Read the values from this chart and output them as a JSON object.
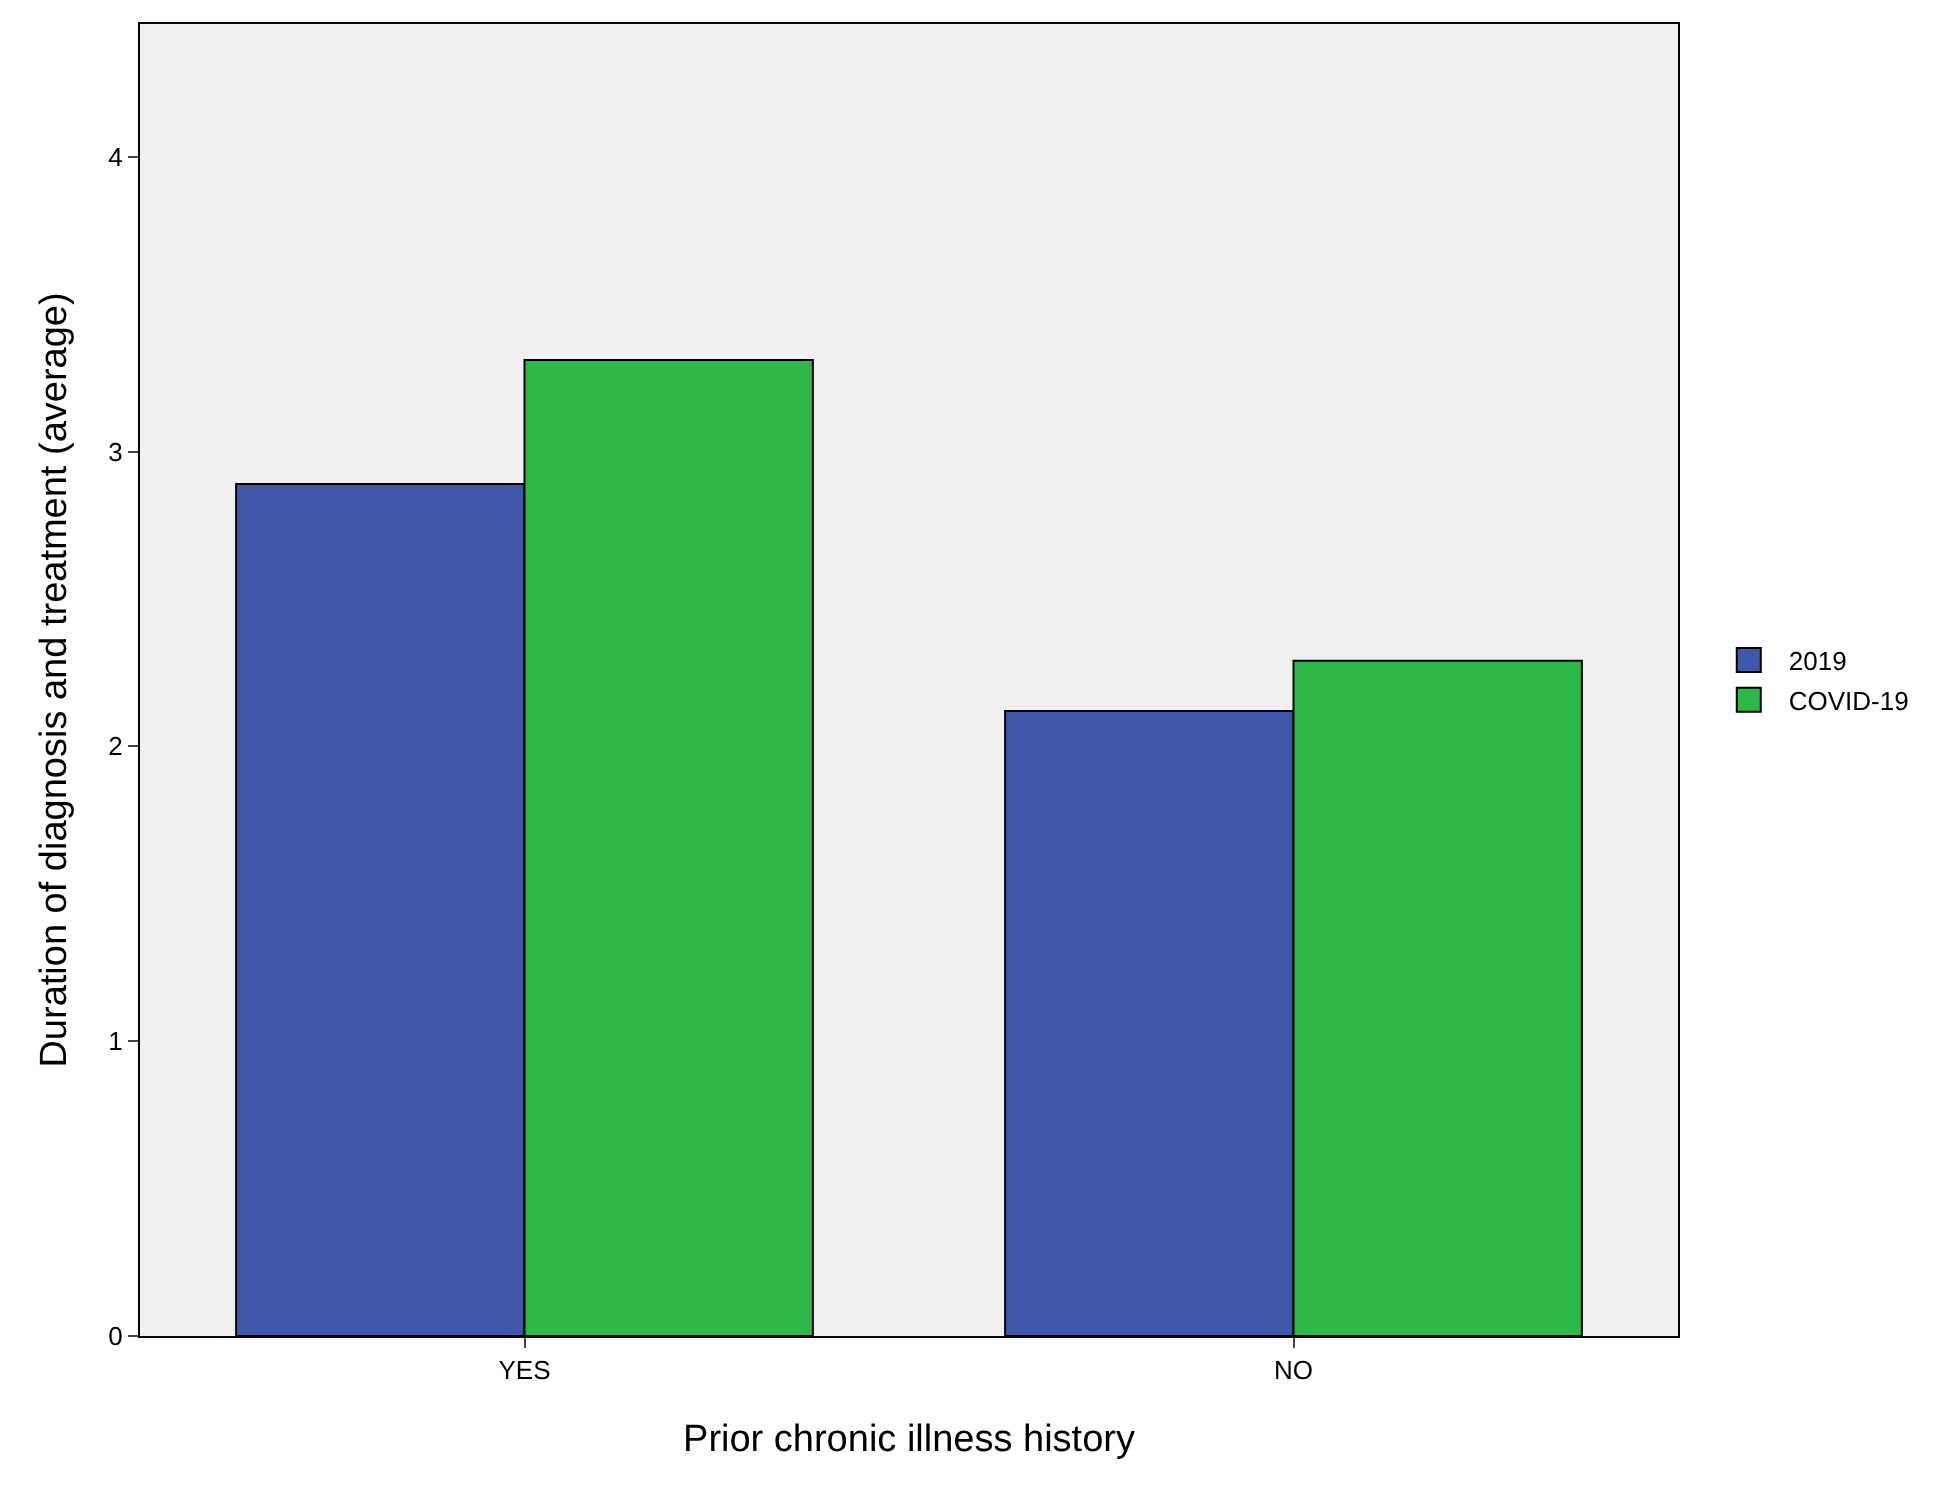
{
  "chart_data": {
    "type": "bar",
    "xlabel": "Prior chronic illness history",
    "ylabel": "Duration of diagnosis and treatment (average)",
    "categories": [
      "YES",
      "NO"
    ],
    "series": [
      {
        "name": "2019",
        "color": "#3e58ac",
        "values": [
          2.89,
          2.12
        ]
      },
      {
        "name": "COVID-19",
        "color": "#2fb84a",
        "values": [
          3.31,
          2.29
        ]
      }
    ],
    "ylim": [
      0,
      4.45
    ],
    "yticks": [
      0,
      1,
      2,
      3,
      4
    ],
    "grid": false,
    "legend": "right"
  }
}
